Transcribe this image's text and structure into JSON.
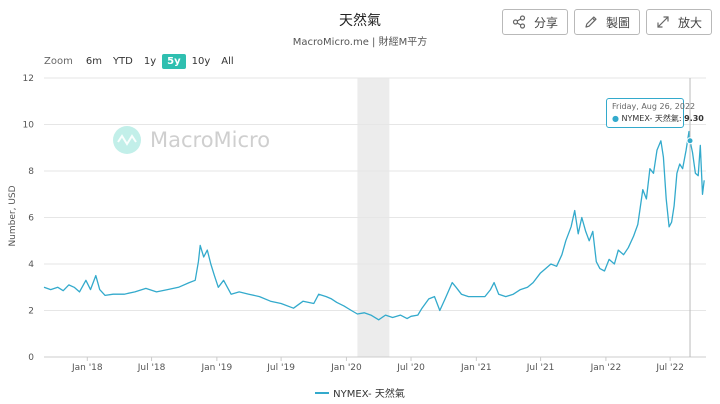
{
  "header": {
    "title": "天然氣",
    "subtitle": "MacroMicro.me | 財經M平方"
  },
  "actions": [
    {
      "label": "分享",
      "icon": "share-icon"
    },
    {
      "label": "製圖",
      "icon": "pencil-icon"
    },
    {
      "label": "放大",
      "icon": "expand-icon"
    }
  ],
  "zoom": {
    "label": "Zoom",
    "options": [
      "6m",
      "YTD",
      "1y",
      "5y",
      "10y",
      "All"
    ],
    "selected": "5y"
  },
  "watermark": "MacroMicro",
  "tooltip": {
    "date": "Friday, Aug 26, 2022",
    "series": "NYMEX- 天然氣:",
    "value": "9.30"
  },
  "legend": {
    "label": "NYMEX- 天然氣"
  },
  "colors": {
    "series": "#33aacc",
    "accent": "#2fbfb0",
    "shade": "#ececec"
  },
  "chart_data": {
    "type": "line",
    "title": "天然氣",
    "ylabel": "Number, USD",
    "ylim": [
      0,
      12
    ],
    "yticks": [
      0,
      2,
      4,
      6,
      8,
      10,
      12
    ],
    "xlim": [
      "2017-09-01",
      "2022-10-10"
    ],
    "xticks": [
      {
        "label": "Jan '18",
        "date": "2018-01-01"
      },
      {
        "label": "Jul '18",
        "date": "2018-07-01"
      },
      {
        "label": "Jan '19",
        "date": "2019-01-01"
      },
      {
        "label": "Jul '19",
        "date": "2019-07-01"
      },
      {
        "label": "Jan '20",
        "date": "2020-01-01"
      },
      {
        "label": "Jul '20",
        "date": "2020-07-01"
      },
      {
        "label": "Jan '21",
        "date": "2021-01-01"
      },
      {
        "label": "Jul '21",
        "date": "2021-07-01"
      },
      {
        "label": "Jan '22",
        "date": "2022-01-01"
      },
      {
        "label": "Jul '22",
        "date": "2022-07-01"
      }
    ],
    "shaded_period": [
      "2020-02-01",
      "2020-05-01"
    ],
    "grid": true,
    "legend_position": "bottom-center",
    "series": [
      {
        "name": "NYMEX- 天然氣",
        "points": [
          [
            "2017-09-01",
            3.0
          ],
          [
            "2017-09-20",
            2.9
          ],
          [
            "2017-10-10",
            3.0
          ],
          [
            "2017-10-25",
            2.85
          ],
          [
            "2017-11-10",
            3.1
          ],
          [
            "2017-11-25",
            3.0
          ],
          [
            "2017-12-10",
            2.8
          ],
          [
            "2017-12-28",
            3.3
          ],
          [
            "2018-01-10",
            2.9
          ],
          [
            "2018-01-25",
            3.5
          ],
          [
            "2018-02-05",
            2.9
          ],
          [
            "2018-02-20",
            2.65
          ],
          [
            "2018-03-15",
            2.7
          ],
          [
            "2018-04-15",
            2.7
          ],
          [
            "2018-05-15",
            2.8
          ],
          [
            "2018-06-15",
            2.95
          ],
          [
            "2018-07-15",
            2.8
          ],
          [
            "2018-08-15",
            2.9
          ],
          [
            "2018-09-15",
            3.0
          ],
          [
            "2018-10-15",
            3.2
          ],
          [
            "2018-11-01",
            3.3
          ],
          [
            "2018-11-10",
            4.1
          ],
          [
            "2018-11-15",
            4.8
          ],
          [
            "2018-11-25",
            4.3
          ],
          [
            "2018-12-05",
            4.6
          ],
          [
            "2018-12-15",
            4.0
          ],
          [
            "2018-12-25",
            3.5
          ],
          [
            "2019-01-05",
            3.0
          ],
          [
            "2019-01-20",
            3.3
          ],
          [
            "2019-02-10",
            2.7
          ],
          [
            "2019-03-05",
            2.8
          ],
          [
            "2019-04-01",
            2.7
          ],
          [
            "2019-05-01",
            2.6
          ],
          [
            "2019-06-01",
            2.4
          ],
          [
            "2019-07-01",
            2.3
          ],
          [
            "2019-08-05",
            2.1
          ],
          [
            "2019-09-01",
            2.4
          ],
          [
            "2019-10-01",
            2.3
          ],
          [
            "2019-10-15",
            2.7
          ],
          [
            "2019-11-05",
            2.6
          ],
          [
            "2019-11-20",
            2.5
          ],
          [
            "2019-12-05",
            2.35
          ],
          [
            "2019-12-25",
            2.2
          ],
          [
            "2020-01-15",
            2.0
          ],
          [
            "2020-02-01",
            1.85
          ],
          [
            "2020-02-20",
            1.9
          ],
          [
            "2020-03-10",
            1.8
          ],
          [
            "2020-04-01",
            1.6
          ],
          [
            "2020-04-20",
            1.8
          ],
          [
            "2020-05-10",
            1.7
          ],
          [
            "2020-06-01",
            1.8
          ],
          [
            "2020-06-20",
            1.65
          ],
          [
            "2020-07-01",
            1.75
          ],
          [
            "2020-07-20",
            1.8
          ],
          [
            "2020-08-01",
            2.1
          ],
          [
            "2020-08-20",
            2.5
          ],
          [
            "2020-09-05",
            2.6
          ],
          [
            "2020-09-20",
            2.0
          ],
          [
            "2020-10-05",
            2.5
          ],
          [
            "2020-10-25",
            3.2
          ],
          [
            "2020-11-05",
            3.0
          ],
          [
            "2020-11-20",
            2.7
          ],
          [
            "2020-12-10",
            2.6
          ],
          [
            "2021-01-05",
            2.6
          ],
          [
            "2021-01-25",
            2.6
          ],
          [
            "2021-02-10",
            2.9
          ],
          [
            "2021-02-20",
            3.2
          ],
          [
            "2021-03-05",
            2.7
          ],
          [
            "2021-03-25",
            2.6
          ],
          [
            "2021-04-15",
            2.7
          ],
          [
            "2021-05-05",
            2.9
          ],
          [
            "2021-05-25",
            3.0
          ],
          [
            "2021-06-10",
            3.2
          ],
          [
            "2021-06-30",
            3.6
          ],
          [
            "2021-07-15",
            3.8
          ],
          [
            "2021-07-30",
            4.0
          ],
          [
            "2021-08-15",
            3.9
          ],
          [
            "2021-08-30",
            4.4
          ],
          [
            "2021-09-10",
            5.0
          ],
          [
            "2021-09-25",
            5.6
          ],
          [
            "2021-10-05",
            6.3
          ],
          [
            "2021-10-15",
            5.3
          ],
          [
            "2021-10-25",
            6.0
          ],
          [
            "2021-11-05",
            5.4
          ],
          [
            "2021-11-15",
            5.0
          ],
          [
            "2021-11-25",
            5.4
          ],
          [
            "2021-12-05",
            4.1
          ],
          [
            "2021-12-15",
            3.8
          ],
          [
            "2021-12-28",
            3.7
          ],
          [
            "2022-01-10",
            4.2
          ],
          [
            "2022-01-25",
            4.0
          ],
          [
            "2022-02-05",
            4.6
          ],
          [
            "2022-02-20",
            4.4
          ],
          [
            "2022-03-05",
            4.7
          ],
          [
            "2022-03-20",
            5.2
          ],
          [
            "2022-04-01",
            5.7
          ],
          [
            "2022-04-15",
            7.2
          ],
          [
            "2022-04-25",
            6.8
          ],
          [
            "2022-05-05",
            8.1
          ],
          [
            "2022-05-15",
            7.9
          ],
          [
            "2022-05-25",
            8.9
          ],
          [
            "2022-06-05",
            9.3
          ],
          [
            "2022-06-12",
            8.6
          ],
          [
            "2022-06-20",
            6.8
          ],
          [
            "2022-06-28",
            5.6
          ],
          [
            "2022-07-05",
            5.8
          ],
          [
            "2022-07-12",
            6.5
          ],
          [
            "2022-07-20",
            7.9
          ],
          [
            "2022-07-28",
            8.3
          ],
          [
            "2022-08-05",
            8.1
          ],
          [
            "2022-08-15",
            8.9
          ],
          [
            "2022-08-23",
            9.7
          ],
          [
            "2022-08-26",
            9.3
          ],
          [
            "2022-09-02",
            8.8
          ],
          [
            "2022-09-10",
            7.9
          ],
          [
            "2022-09-18",
            7.8
          ],
          [
            "2022-09-24",
            9.1
          ],
          [
            "2022-09-30",
            7.0
          ],
          [
            "2022-10-05",
            7.6
          ]
        ]
      }
    ]
  }
}
